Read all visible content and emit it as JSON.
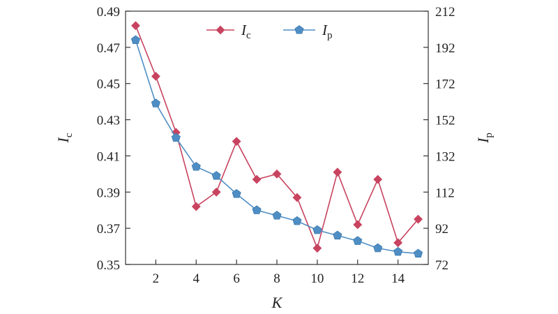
{
  "chart_data": {
    "type": "line",
    "x": [
      1,
      2,
      3,
      4,
      5,
      6,
      7,
      8,
      9,
      10,
      11,
      12,
      13,
      14,
      15
    ],
    "xlabel": "K",
    "xlim": [
      0.5,
      15.5
    ],
    "xticks": [
      2,
      4,
      6,
      8,
      10,
      12,
      14
    ],
    "ylabel_left": {
      "main": "I",
      "sub": "c"
    },
    "ylabel_right": {
      "main": "I",
      "sub": "p"
    },
    "ylim_left": [
      0.35,
      0.49
    ],
    "yticks_left": [
      "0.35",
      "0.37",
      "0.39",
      "0.41",
      "0.43",
      "0.45",
      "0.47",
      "0.49"
    ],
    "ylim_right": [
      72,
      212
    ],
    "yticks_right": [
      "72",
      "92",
      "112",
      "132",
      "152",
      "172",
      "192",
      "212"
    ],
    "grid": false,
    "legend_position": "top",
    "series": [
      {
        "name": "I",
        "name_sub": "c",
        "axis": "left",
        "color": "#c8435f",
        "marker": "diamond",
        "values": [
          0.482,
          0.454,
          0.423,
          0.382,
          0.39,
          0.418,
          0.397,
          0.4,
          0.387,
          0.359,
          0.401,
          0.372,
          0.397,
          0.362,
          0.375
        ]
      },
      {
        "name": "I",
        "name_sub": "p",
        "axis": "right",
        "color": "#4f8ec4",
        "marker": "pentagon",
        "values": [
          196,
          161,
          142,
          126,
          121,
          111,
          102,
          99,
          96,
          91,
          88,
          85,
          81,
          79,
          78
        ]
      }
    ]
  }
}
